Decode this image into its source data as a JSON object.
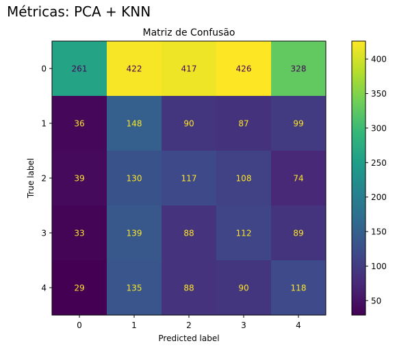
{
  "figure": {
    "suptitle": "Métricas: PCA + KNN"
  },
  "chart_data": {
    "type": "heatmap",
    "title": "Matriz de Confusão",
    "xlabel": "Predicted label",
    "ylabel": "True label",
    "x_categories": [
      "0",
      "1",
      "2",
      "3",
      "4"
    ],
    "y_categories": [
      "0",
      "1",
      "2",
      "3",
      "4"
    ],
    "values": [
      [
        261,
        422,
        417,
        426,
        328
      ],
      [
        36,
        148,
        90,
        87,
        99
      ],
      [
        39,
        130,
        117,
        108,
        74
      ],
      [
        33,
        139,
        88,
        112,
        89
      ],
      [
        29,
        135,
        88,
        90,
        118
      ]
    ],
    "colormap": "viridis",
    "color_range": [
      29,
      426
    ],
    "colorbar_ticks": [
      50,
      100,
      150,
      200,
      250,
      300,
      350,
      400
    ],
    "annotation_colors": {
      "on_dark": "#fde725",
      "on_light": "#440154"
    },
    "grid": false,
    "colorbar_position": "right"
  }
}
